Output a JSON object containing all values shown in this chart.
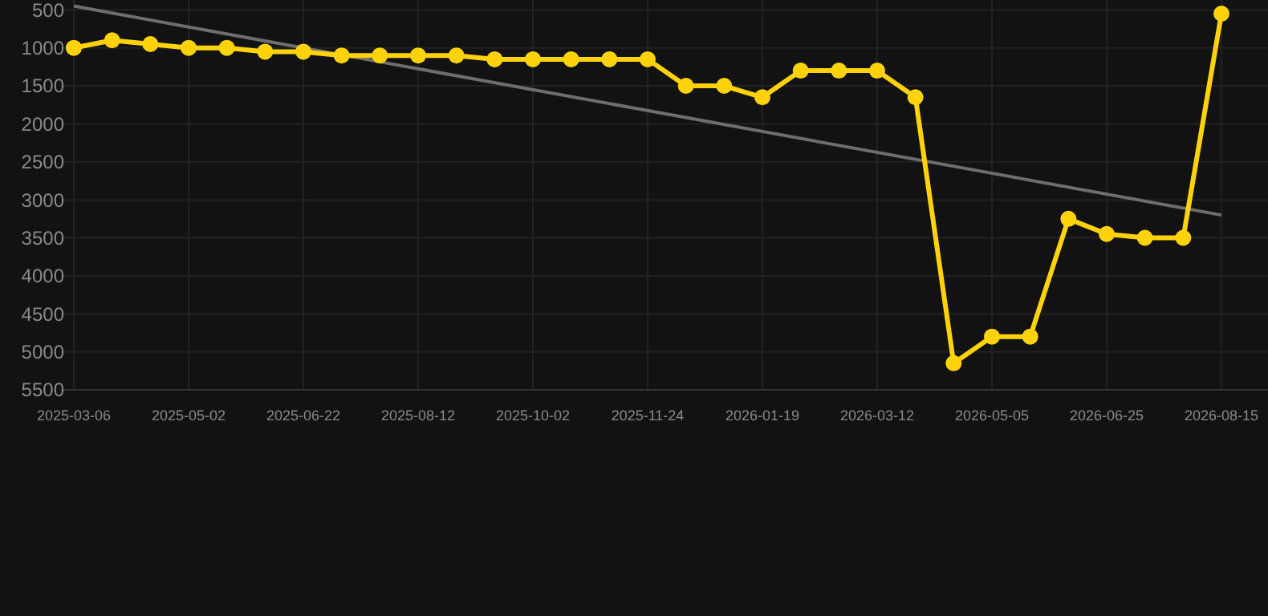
{
  "chart_data": {
    "type": "line",
    "categories": [
      "2025-03-06",
      null,
      null,
      "2025-05-02",
      null,
      null,
      "2025-06-22",
      null,
      null,
      "2025-08-12",
      null,
      null,
      "2025-10-02",
      null,
      null,
      "2025-11-24",
      null,
      null,
      "2026-01-19",
      null,
      null,
      "2026-03-12",
      null,
      null,
      "2026-05-05",
      null,
      null,
      "2026-06-25",
      null,
      null,
      "2026-08-15"
    ],
    "series": [
      {
        "color": "#ffd20a",
        "marker": "circle",
        "values": [
          1000,
          900,
          950,
          1000,
          1000,
          1050,
          1050,
          1100,
          1100,
          1100,
          1100,
          1150,
          1150,
          1150,
          1150,
          1150,
          1500,
          1500,
          1650,
          1300,
          1300,
          1300,
          1650,
          5150,
          4800,
          4800,
          3250,
          3450,
          3500,
          3500,
          550
        ]
      },
      {
        "color": "#6e6e6e",
        "marker": "none",
        "values": [
          450,
          null,
          null,
          null,
          null,
          null,
          null,
          null,
          null,
          null,
          null,
          null,
          null,
          null,
          null,
          null,
          null,
          null,
          null,
          null,
          null,
          null,
          null,
          null,
          null,
          null,
          null,
          null,
          null,
          null,
          3200
        ]
      }
    ],
    "ylim": [
      5500,
      370
    ],
    "yticks": [
      500,
      1000,
      1500,
      2000,
      2500,
      3000,
      3500,
      4000,
      4500,
      5000,
      5500
    ],
    "grid": true
  }
}
